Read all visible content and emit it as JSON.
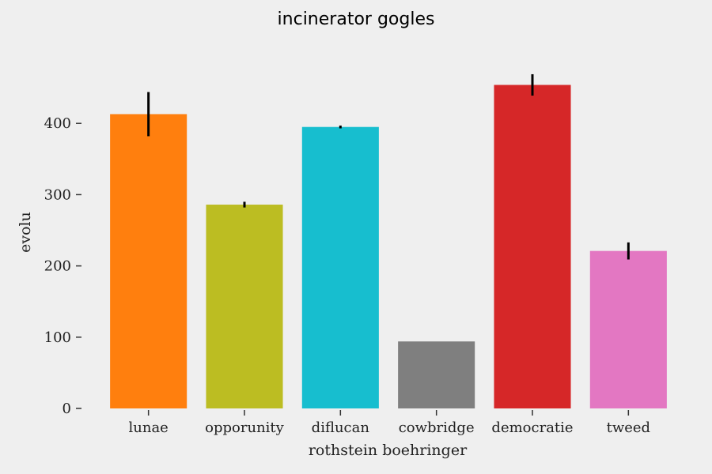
{
  "chart_data": {
    "type": "bar",
    "title": "incinerator gogles",
    "xlabel": "rothstein boehringer",
    "ylabel": "evolu",
    "ylim": [
      0,
      500
    ],
    "yticks": [
      0,
      100,
      200,
      300,
      400
    ],
    "grid": false,
    "categories": [
      "lunae",
      "opporunity",
      "diflucan",
      "cowbridge",
      "democratie",
      "tweed"
    ],
    "values": [
      413,
      286,
      395,
      94,
      454,
      221
    ],
    "errors": [
      31,
      4,
      2,
      0,
      15,
      12
    ],
    "colors": [
      "#ff7f0e",
      "#bcbd22",
      "#17becf",
      "#7f7f7f",
      "#d62728",
      "#e377c2"
    ]
  }
}
